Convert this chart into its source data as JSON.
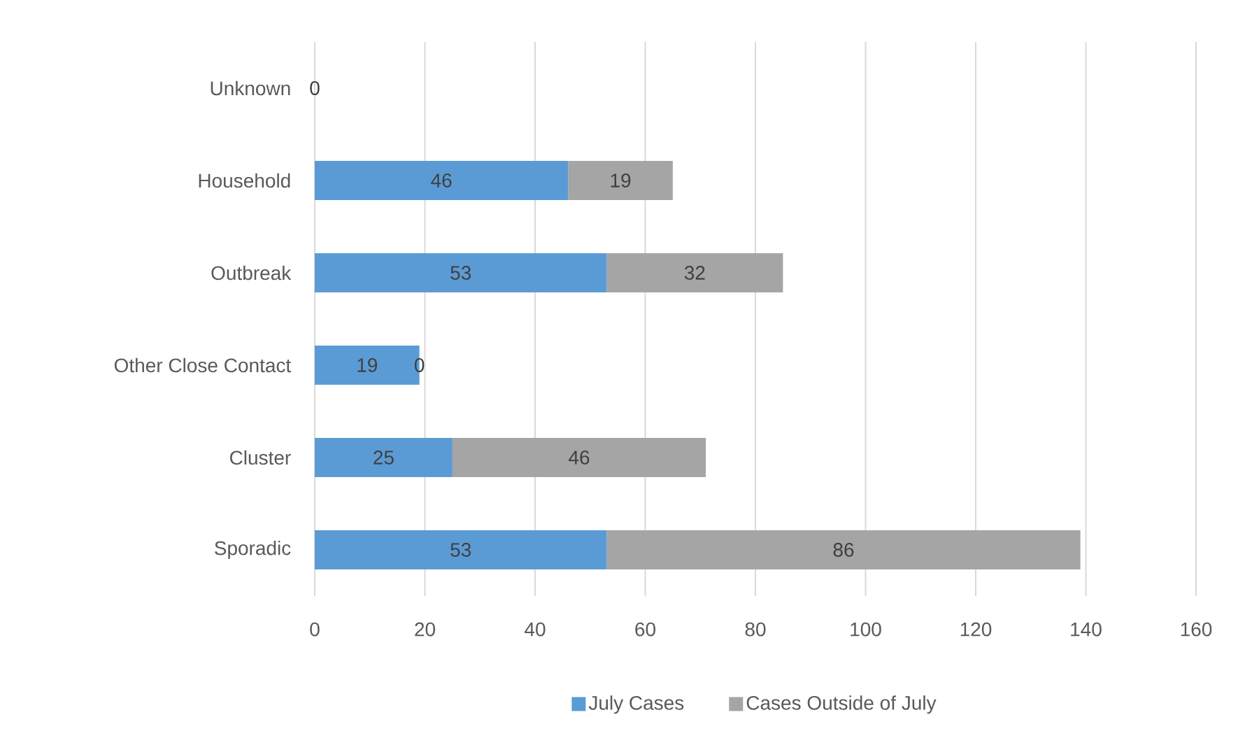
{
  "chart_data": {
    "type": "bar",
    "orientation": "horizontal",
    "stacked": true,
    "categories": [
      "Unknown",
      "Household",
      "Outbreak",
      "Other Close Contact",
      "Cluster",
      "Sporadic"
    ],
    "series": [
      {
        "name": "July Cases",
        "color": "#5b9bd5",
        "values": [
          0,
          46,
          53,
          19,
          25,
          53
        ],
        "value_labels": [
          "0",
          "46",
          "53",
          "19",
          "25",
          "53"
        ]
      },
      {
        "name": "Cases Outside of July",
        "color": "#a5a5a5",
        "values": [
          0,
          19,
          32,
          0,
          46,
          86
        ],
        "value_labels": [
          null,
          "19",
          "32",
          "0",
          "46",
          "86"
        ]
      }
    ],
    "xlim": [
      0,
      160
    ],
    "xticks": [
      0,
      20,
      40,
      60,
      80,
      100,
      120,
      140,
      160
    ],
    "grid": "x",
    "legend": "bottom"
  }
}
